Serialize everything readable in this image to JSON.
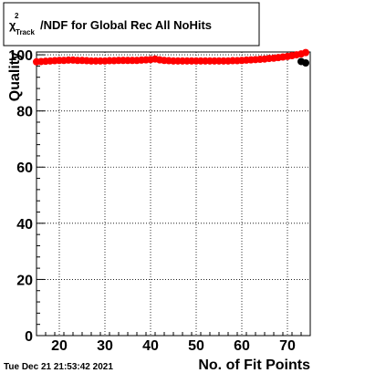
{
  "chart_data": {
    "type": "scatter",
    "title_parts": {
      "symbol": "χ",
      "superscript": "2",
      "subscript": "Track",
      "rest": "/NDF for Global Rec All NoHits"
    },
    "xlabel": "No. of Fit Points",
    "ylabel": "Quality",
    "xlim": [
      15,
      75
    ],
    "ylim": [
      0,
      101
    ],
    "x_ticks": [
      20,
      30,
      40,
      50,
      60,
      70
    ],
    "y_ticks": [
      0,
      20,
      40,
      60,
      80,
      100
    ],
    "grid": true,
    "series": [
      {
        "color": "#ff0000",
        "x": [
          15,
          16,
          17,
          18,
          19,
          20,
          21,
          22,
          23,
          24,
          25,
          26,
          27,
          28,
          29,
          30,
          31,
          32,
          33,
          34,
          35,
          36,
          37,
          38,
          39,
          40,
          41,
          42,
          43,
          44,
          45,
          46,
          47,
          48,
          49,
          50,
          51,
          52,
          53,
          54,
          55,
          56,
          57,
          58,
          59,
          60,
          61,
          62,
          63,
          64,
          65,
          66,
          67,
          68,
          69,
          70,
          71,
          72,
          73,
          74
        ],
        "y": [
          97.5,
          97.6,
          97.7,
          97.8,
          97.9,
          98.0,
          98.0,
          98.1,
          98.1,
          98.0,
          98.0,
          97.9,
          97.8,
          97.8,
          97.8,
          97.8,
          97.9,
          97.9,
          98.0,
          98.0,
          98.0,
          98.0,
          98.0,
          98.1,
          98.2,
          98.3,
          98.5,
          98.2,
          98.0,
          97.9,
          97.8,
          97.8,
          97.8,
          97.8,
          97.8,
          97.8,
          97.8,
          97.8,
          97.8,
          97.8,
          97.8,
          97.8,
          97.8,
          97.9,
          97.9,
          98.0,
          98.1,
          98.2,
          98.3,
          98.4,
          98.5,
          98.7,
          98.8,
          99.0,
          99.2,
          99.4,
          99.7,
          100.0,
          100.3,
          100.8
        ]
      },
      {
        "color": "#000000",
        "x": [
          73,
          74
        ],
        "y": [
          97.6,
          97.1
        ]
      }
    ]
  },
  "timestamp": "Tue Dec 21 21:53:42 2021"
}
